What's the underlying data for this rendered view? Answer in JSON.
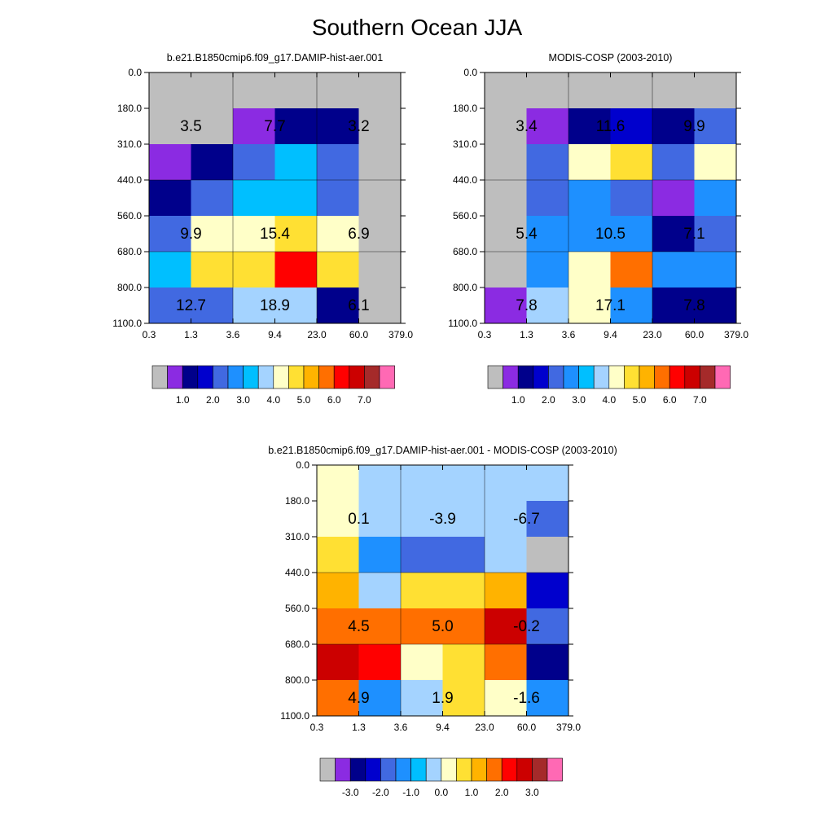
{
  "title": "Southern Ocean JJA",
  "colors": {
    "gray": "#BEBEBE",
    "c1": "#8B2BE2",
    "c2": "#00008B",
    "c3": "#0000CD",
    "c4": "#4169E1",
    "c5": "#1E90FF",
    "c6": "#00BFFF",
    "c7": "#A4D3FF",
    "c8": "#FFFFC8",
    "c9": "#FFE033",
    "c10": "#FFB300",
    "c11": "#FF6F00",
    "c12": "#FF0000",
    "c13": "#CC0000",
    "c14": "#A52A2A",
    "c15": "#FF69B4"
  },
  "chart_data": [
    {
      "type": "heatmap",
      "id": "model",
      "title": "b.e21.B1850cmip6.f09_g17.DAMIP-hist-aer.001",
      "xlabel": "",
      "ylabel": "",
      "x_ticks": [
        "0.3",
        "1.3",
        "3.6",
        "9.4",
        "23.0",
        "60.0",
        "379.0"
      ],
      "y_ticks": [
        "0.0",
        "180.0",
        "310.0",
        "440.0",
        "560.0",
        "680.0",
        "800.0",
        "1100.0"
      ],
      "cells": [
        [
          "gray",
          "gray",
          "gray",
          "gray",
          "gray",
          "gray"
        ],
        [
          "gray",
          "gray",
          "c1",
          "c2",
          "c2",
          "gray"
        ],
        [
          "c1",
          "c2",
          "c4",
          "c6",
          "c4",
          "gray"
        ],
        [
          "c2",
          "c4",
          "c6",
          "c6",
          "c4",
          "gray"
        ],
        [
          "c4",
          "c8",
          "c8",
          "c9",
          "c8",
          "gray"
        ],
        [
          "c6",
          "c9",
          "c9",
          "c12",
          "c9",
          "gray"
        ],
        [
          "c4",
          "c4",
          "c7",
          "c7",
          "c2",
          "gray"
        ]
      ],
      "annotations": [
        {
          "value": "3.5",
          "col": 1,
          "yband": 1
        },
        {
          "value": "7.7",
          "col": 3,
          "yband": 1
        },
        {
          "value": "3.2",
          "col": 5,
          "yband": 1
        },
        {
          "value": "9.9",
          "col": 1,
          "yband": 4
        },
        {
          "value": "15.4",
          "col": 3,
          "yband": 4
        },
        {
          "value": "6.9",
          "col": 5,
          "yband": 4
        },
        {
          "value": "12.7",
          "col": 1,
          "yband": 6
        },
        {
          "value": "18.9",
          "col": 3,
          "yband": 6
        },
        {
          "value": "6.1",
          "col": 5,
          "yband": 6
        }
      ],
      "colorbar": {
        "boxes": [
          "gray",
          "c1",
          "c2",
          "c3",
          "c4",
          "c5",
          "c6",
          "c7",
          "c8",
          "c9",
          "c10",
          "c11",
          "c12",
          "c13",
          "c14",
          "c15"
        ],
        "labels": [
          "1.0",
          "2.0",
          "3.0",
          "4.0",
          "5.0",
          "6.0",
          "7.0"
        ],
        "label_after_box": [
          2,
          4,
          6,
          8,
          10,
          12,
          14
        ]
      }
    },
    {
      "type": "heatmap",
      "id": "obs",
      "title": "MODIS-COSP (2003-2010)",
      "xlabel": "",
      "ylabel": "",
      "x_ticks": [
        "0.3",
        "1.3",
        "3.6",
        "9.4",
        "23.0",
        "60.0",
        "379.0"
      ],
      "y_ticks": [
        "0.0",
        "180.0",
        "310.0",
        "440.0",
        "560.0",
        "680.0",
        "800.0",
        "1100.0"
      ],
      "cells": [
        [
          "gray",
          "gray",
          "gray",
          "gray",
          "gray",
          "gray"
        ],
        [
          "gray",
          "c1",
          "c2",
          "c3",
          "c2",
          "c4"
        ],
        [
          "gray",
          "c4",
          "c8",
          "c9",
          "c4",
          "c8"
        ],
        [
          "gray",
          "c4",
          "c5",
          "c4",
          "c1",
          "c5"
        ],
        [
          "gray",
          "c5",
          "c5",
          "c5",
          "c2",
          "c4"
        ],
        [
          "gray",
          "c5",
          "c8",
          "c11",
          "c5",
          "c5"
        ],
        [
          "c1",
          "c7",
          "c8",
          "c5",
          "c2",
          "c2"
        ]
      ],
      "annotations": [
        {
          "value": "3.4",
          "col": 1,
          "yband": 1
        },
        {
          "value": "11.6",
          "col": 3,
          "yband": 1
        },
        {
          "value": "9.9",
          "col": 5,
          "yband": 1
        },
        {
          "value": "5.4",
          "col": 1,
          "yband": 4
        },
        {
          "value": "10.5",
          "col": 3,
          "yband": 4
        },
        {
          "value": "7.1",
          "col": 5,
          "yband": 4
        },
        {
          "value": "7.8",
          "col": 1,
          "yband": 6
        },
        {
          "value": "17.1",
          "col": 3,
          "yband": 6
        },
        {
          "value": "7.8",
          "col": 5,
          "yband": 6
        }
      ],
      "colorbar": {
        "boxes": [
          "gray",
          "c1",
          "c2",
          "c3",
          "c4",
          "c5",
          "c6",
          "c7",
          "c8",
          "c9",
          "c10",
          "c11",
          "c12",
          "c13",
          "c14",
          "c15"
        ],
        "labels": [
          "1.0",
          "2.0",
          "3.0",
          "4.0",
          "5.0",
          "6.0",
          "7.0"
        ],
        "label_after_box": [
          2,
          4,
          6,
          8,
          10,
          12,
          14
        ]
      }
    },
    {
      "type": "heatmap",
      "id": "diff",
      "title": "b.e21.B1850cmip6.f09_g17.DAMIP-hist-aer.001 - MODIS-COSP (2003-2010)",
      "xlabel": "",
      "ylabel": "",
      "x_ticks": [
        "0.3",
        "1.3",
        "3.6",
        "9.4",
        "23.0",
        "60.0",
        "379.0"
      ],
      "y_ticks": [
        "0.0",
        "180.0",
        "310.0",
        "440.0",
        "560.0",
        "680.0",
        "800.0",
        "1100.0"
      ],
      "cells": [
        [
          "c8",
          "c7",
          "c7",
          "c7",
          "c7",
          "c7"
        ],
        [
          "c8",
          "c7",
          "c7",
          "c7",
          "c7",
          "c4"
        ],
        [
          "c9",
          "c5",
          "c4",
          "c4",
          "c7",
          "gray"
        ],
        [
          "c10",
          "c7",
          "c9",
          "c9",
          "c10",
          "c3"
        ],
        [
          "c11",
          "c11",
          "c11",
          "c11",
          "c13",
          "c4"
        ],
        [
          "c13",
          "c12",
          "c8",
          "c9",
          "c11",
          "c2"
        ],
        [
          "c11",
          "c5",
          "c7",
          "c9",
          "c8",
          "c5"
        ]
      ],
      "annotations": [
        {
          "value": "0.1",
          "col": 1,
          "yband": 1
        },
        {
          "value": "-3.9",
          "col": 3,
          "yband": 1
        },
        {
          "value": "-6.7",
          "col": 5,
          "yband": 1
        },
        {
          "value": "4.5",
          "col": 1,
          "yband": 4
        },
        {
          "value": "5.0",
          "col": 3,
          "yband": 4
        },
        {
          "value": "-0.2",
          "col": 5,
          "yband": 4
        },
        {
          "value": "4.9",
          "col": 1,
          "yband": 6
        },
        {
          "value": "1.9",
          "col": 3,
          "yband": 6
        },
        {
          "value": "-1.6",
          "col": 5,
          "yband": 6
        }
      ],
      "colorbar": {
        "boxes": [
          "gray",
          "c1",
          "c2",
          "c3",
          "c4",
          "c5",
          "c6",
          "c7",
          "c8",
          "c9",
          "c10",
          "c11",
          "c12",
          "c13",
          "c14",
          "c15"
        ],
        "labels": [
          "-3.0",
          "-2.0",
          "-1.0",
          "0.0",
          "1.0",
          "2.0",
          "3.0"
        ],
        "label_after_box": [
          2,
          4,
          6,
          8,
          10,
          12,
          14
        ]
      }
    }
  ]
}
